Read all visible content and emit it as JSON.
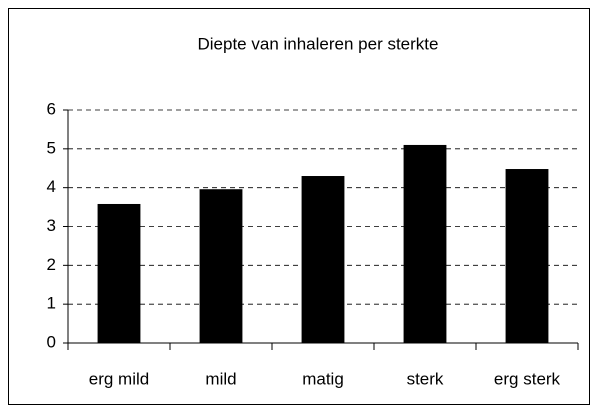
{
  "chart_data": {
    "type": "bar",
    "title": "Diepte van inhaleren per sterkte",
    "categories": [
      "erg mild",
      "mild",
      "matig",
      "sterk",
      "erg sterk"
    ],
    "values": [
      3.58,
      3.96,
      4.3,
      5.1,
      4.48
    ],
    "color": "#000000",
    "ylim": [
      0,
      6
    ],
    "yticks": [
      0,
      1,
      2,
      3,
      4,
      5,
      6
    ],
    "grid": true
  }
}
